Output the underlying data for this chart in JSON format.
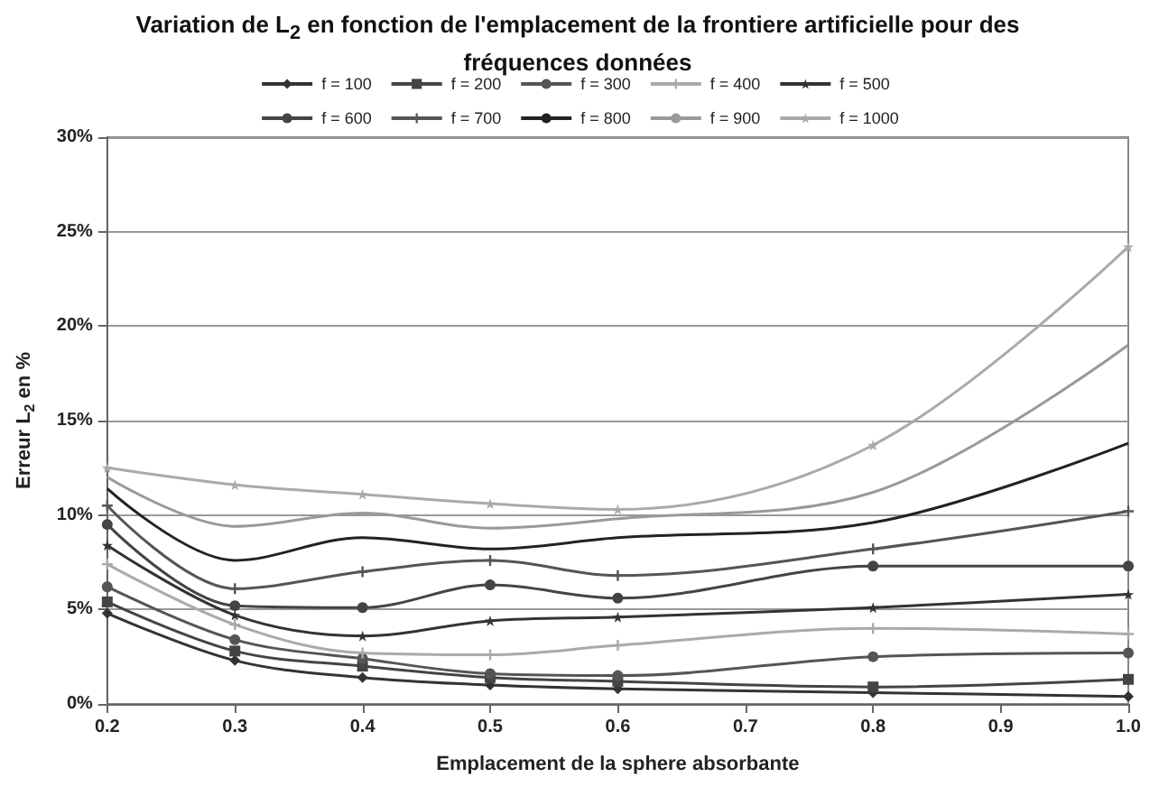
{
  "chart_data": {
    "type": "line",
    "title": "Variation de L$_{2}$ en fonction de l'emplacement de la frontiere artificielle pour des fréquences données",
    "xlabel": "Emplacement de la sphere absorbante",
    "ylabel": "Erreur L$_{2}$ en %",
    "x": [
      0.2,
      0.3,
      0.4,
      0.5,
      0.6,
      0.8,
      1.0
    ],
    "xlim": [
      0.2,
      1.0
    ],
    "xticks": [
      0.2,
      0.3,
      0.4,
      0.5,
      0.6,
      0.7,
      0.8,
      0.9,
      {
        "value": 1.0,
        "label": "1.0"
      }
    ],
    "ylim": [
      0,
      30
    ],
    "yticks": [
      {
        "value": 0,
        "label": "0%"
      },
      {
        "value": 5,
        "label": "5%"
      },
      {
        "value": 10,
        "label": "10%"
      },
      {
        "value": 15,
        "label": "15%"
      },
      {
        "value": 20,
        "label": "20%"
      },
      {
        "value": 25,
        "label": "25%"
      },
      {
        "value": 30,
        "label": "30%"
      }
    ],
    "grid": "y",
    "legend": "top",
    "series": [
      {
        "name": "f = 100",
        "color": "#333333",
        "marker": "diamond",
        "values": [
          4.8,
          2.3,
          1.4,
          1.0,
          0.8,
          0.6,
          0.4
        ]
      },
      {
        "name": "f = 200",
        "color": "#444444",
        "marker": "square",
        "values": [
          5.4,
          2.8,
          2.0,
          1.4,
          1.2,
          0.9,
          1.3
        ]
      },
      {
        "name": "f = 300",
        "color": "#555555",
        "marker": "circle",
        "values": [
          6.2,
          3.4,
          2.4,
          1.6,
          1.5,
          2.5,
          2.7
        ]
      },
      {
        "name": "f = 400",
        "color": "#aaaaaa",
        "marker": "cross",
        "values": [
          7.4,
          4.2,
          2.7,
          2.6,
          3.1,
          4.0,
          3.7
        ]
      },
      {
        "name": "f = 500",
        "color": "#333333",
        "marker": "star",
        "values": [
          8.4,
          4.7,
          3.6,
          4.4,
          4.6,
          5.1,
          5.8
        ]
      },
      {
        "name": "f = 600",
        "color": "#444444",
        "marker": "circle",
        "values": [
          9.5,
          5.2,
          5.1,
          6.3,
          5.6,
          7.3,
          7.3
        ]
      },
      {
        "name": "f = 700",
        "color": "#555555",
        "marker": "cross",
        "values": [
          10.5,
          6.1,
          7.0,
          7.6,
          6.8,
          8.2,
          10.2
        ]
      },
      {
        "name": "f = 800",
        "color": "#222222",
        "marker": "none",
        "values": [
          11.4,
          7.6,
          8.8,
          8.2,
          8.8,
          9.6,
          13.8
        ]
      },
      {
        "name": "f = 900",
        "color": "#999999",
        "marker": "none",
        "values": [
          12.0,
          9.4,
          10.1,
          9.3,
          9.8,
          11.2,
          19.0
        ]
      },
      {
        "name": "f = 1000",
        "color": "#aaaaaa",
        "marker": "star",
        "values": [
          12.5,
          11.6,
          11.1,
          10.6,
          10.3,
          13.7,
          24.2
        ]
      }
    ]
  }
}
